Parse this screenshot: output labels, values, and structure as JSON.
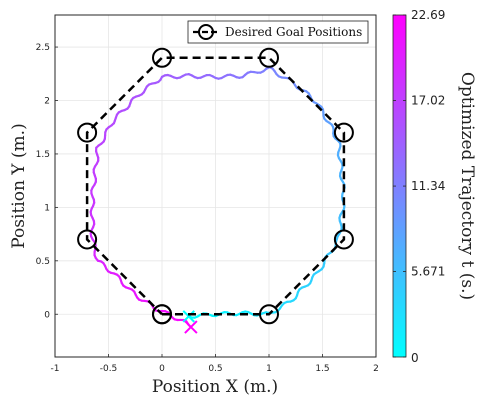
{
  "chart_data": {
    "type": "line",
    "title": "",
    "xlabel": "Position X (m.)",
    "ylabel": "Position Y (m.)",
    "colorbar_label": "Optimized Trajectory t (s.)",
    "xlim": [
      -1,
      2
    ],
    "ylim": [
      -0.4,
      2.8
    ],
    "xticks": [
      "-1",
      "-0.5",
      "0",
      "0.5",
      "1",
      "1.5",
      "2"
    ],
    "yticks": [
      "0",
      "0.5",
      "1",
      "1.5",
      "2",
      "2.5"
    ],
    "grid": true,
    "legend": {
      "placement": "top-right",
      "entries": [
        "Desired Goal Positions"
      ]
    },
    "colorbar": {
      "min": 0,
      "max": 22.69,
      "ticks": [
        "0",
        "5.671",
        "11.34",
        "17.02",
        "22.69"
      ],
      "colors": [
        "#00ffff",
        "#ff00ff"
      ]
    },
    "goals": {
      "x": [
        0,
        1,
        1.7,
        1.7,
        1,
        0,
        -0.7,
        -0.7,
        0
      ],
      "y": [
        0,
        0,
        0.7,
        1.7,
        2.4,
        2.4,
        1.7,
        0.7,
        0
      ],
      "color": "#000000"
    },
    "trajectory": {
      "x": [
        0.25,
        0.5,
        0.75,
        1.0,
        1.2,
        1.45,
        1.65,
        1.7,
        1.65,
        1.6,
        1.45,
        1.25,
        1.0,
        0.75,
        0.5,
        0.25,
        0.0,
        -0.2,
        -0.45,
        -0.6,
        -0.65,
        -0.65,
        -0.6,
        -0.45,
        -0.25,
        -0.05,
        0.1,
        0.22,
        0.27
      ],
      "y": [
        -0.02,
        0.0,
        0.01,
        0.0,
        0.12,
        0.38,
        0.7,
        1.1,
        1.6,
        1.72,
        1.98,
        2.15,
        2.3,
        2.23,
        2.22,
        2.23,
        2.22,
        2.07,
        1.82,
        1.55,
        1.1,
        0.7,
        0.5,
        0.38,
        0.18,
        0.05,
        -0.02,
        -0.08,
        -0.12
      ],
      "t": [
        0,
        0.8,
        1.6,
        2.5,
        3.3,
        4.2,
        5.2,
        6.2,
        7.3,
        8.0,
        9.0,
        10.0,
        11.0,
        12.0,
        12.8,
        13.6,
        14.4,
        15.2,
        16.0,
        16.8,
        17.7,
        18.6,
        19.3,
        20.0,
        20.7,
        21.3,
        21.8,
        22.3,
        22.69
      ]
    }
  }
}
